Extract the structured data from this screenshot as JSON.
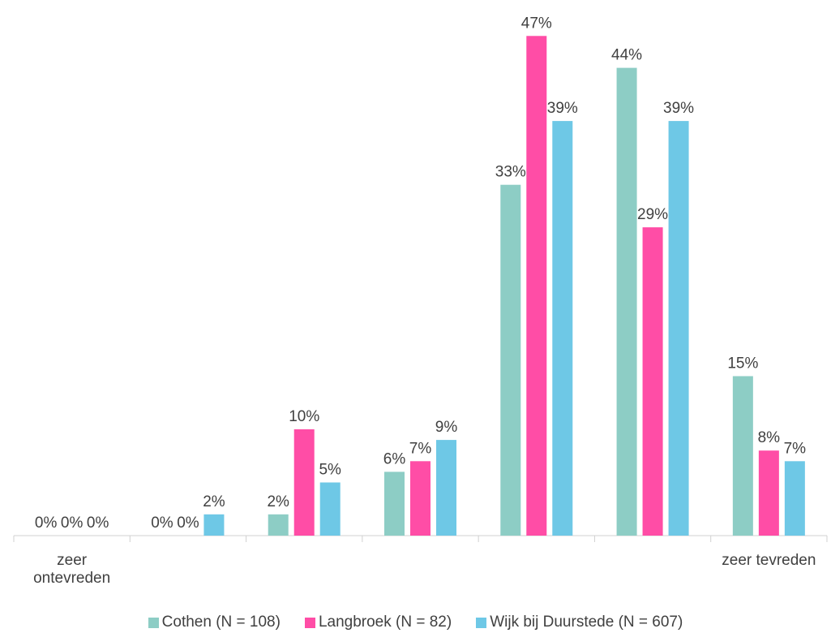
{
  "chart_data": {
    "type": "bar",
    "categories": [
      "zeer ontevreden",
      null,
      null,
      null,
      null,
      null,
      "zeer tevreden"
    ],
    "series": [
      {
        "name": "Cothen (N = 108)",
        "color": "#8dcdc5",
        "values": [
          0,
          0,
          2,
          6,
          33,
          44,
          15
        ],
        "value_labels": [
          "0%",
          "0%",
          "2%",
          "6%",
          "33%",
          "44%",
          "15%"
        ]
      },
      {
        "name": "Langbroek (N = 82)",
        "color": "#ff4da6",
        "values": [
          0,
          0,
          10,
          7,
          47,
          29,
          8
        ],
        "value_labels": [
          "0%",
          "0%",
          "10%",
          "7%",
          "47%",
          "29%",
          "8%"
        ]
      },
      {
        "name": "Wijk bij Duurstede (N = 607)",
        "color": "#6ec8e6",
        "values": [
          0,
          2,
          5,
          9,
          39,
          39,
          7
        ],
        "value_labels": [
          "0%",
          "2%",
          "5%",
          "9%",
          "39%",
          "39%",
          "7%"
        ]
      }
    ],
    "ylim": [
      0,
      50
    ]
  }
}
